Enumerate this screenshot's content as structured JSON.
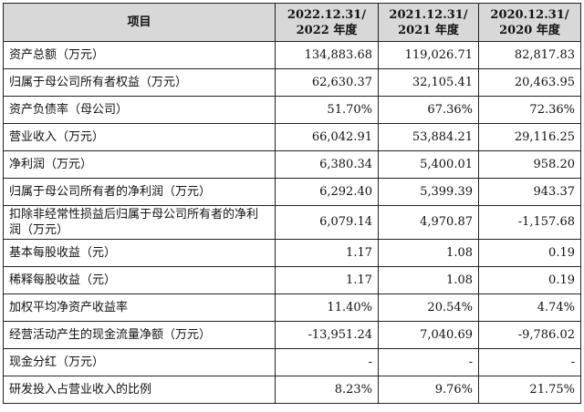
{
  "table": {
    "headers": [
      {
        "line1": "项目",
        "line2": ""
      },
      {
        "line1": "2022.12.31/",
        "line2": "2022 年度"
      },
      {
        "line1": "2021.12.31/",
        "line2": "2021 年度"
      },
      {
        "line1": "2020.12.31/",
        "line2": "2020 年度"
      }
    ],
    "rows": [
      {
        "label": "资产总额（万元）",
        "values": [
          "134,883.68",
          "119,026.71",
          "82,817.83"
        ]
      },
      {
        "label": "归属于母公司所有者权益（万元）",
        "values": [
          "62,630.37",
          "32,105.41",
          "20,463.95"
        ]
      },
      {
        "label": "资产负债率（母公司）",
        "values": [
          "51.70%",
          "67.36%",
          "72.36%"
        ]
      },
      {
        "label": "营业收入（万元）",
        "values": [
          "66,042.91",
          "53,884.21",
          "29,116.25"
        ]
      },
      {
        "label": "净利润（万元）",
        "values": [
          "6,380.34",
          "5,400.01",
          "958.20"
        ]
      },
      {
        "label": "归属于母公司所有者的净利润（万元）",
        "values": [
          "6,292.40",
          "5,399.39",
          "943.37"
        ]
      },
      {
        "label": "扣除非经常性损益后归属于母公司所有者的净利润（万元）",
        "values": [
          "6,079.14",
          "4,970.87",
          "-1,157.68"
        ]
      },
      {
        "label": "基本每股收益（元）",
        "values": [
          "1.17",
          "1.08",
          "0.19"
        ]
      },
      {
        "label": "稀释每股收益（元）",
        "values": [
          "1.17",
          "1.08",
          "0.19"
        ]
      },
      {
        "label": "加权平均净资产收益率",
        "values": [
          "11.40%",
          "20.54%",
          "4.74%"
        ]
      },
      {
        "label": "经营活动产生的现金流量净额（万元）",
        "values": [
          "-13,951.24",
          "7,040.69",
          "-9,786.02"
        ]
      },
      {
        "label": "现金分红（万元）",
        "values": [
          "-",
          "-",
          "-"
        ]
      },
      {
        "label": "研发投入占营业收入的比例",
        "values": [
          "8.23%",
          "9.76%",
          "21.75%"
        ]
      }
    ]
  }
}
